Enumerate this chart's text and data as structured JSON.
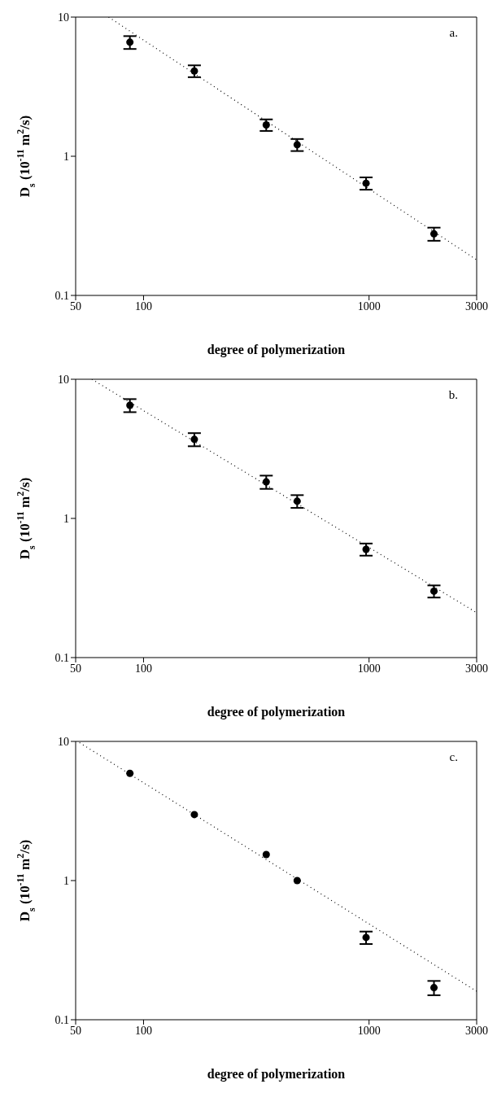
{
  "chart_data": [
    {
      "type": "scatter",
      "xlabel": "degree of polymerization",
      "ylabel": "D$_{s}$ (10$^{-11}$ m$^{2}$/s)",
      "annotations": [
        "a."
      ],
      "xlim": [
        50,
        3000
      ],
      "xticks": [
        50,
        100,
        1000,
        3000
      ],
      "ylim": [
        0.1,
        10
      ],
      "yticks": [
        0.1,
        1,
        10
      ],
      "log": "xy",
      "marker": "circle",
      "series": [
        {
          "color": "#000000",
          "x": [
            87,
            168,
            350,
            480,
            970,
            1940
          ],
          "values": [
            6.6,
            4.1,
            1.68,
            1.21,
            0.64,
            0.277
          ],
          "errors": [
            0.7,
            0.4,
            0.16,
            0.12,
            0.065,
            0.03
          ]
        },
        {
          "type": "line",
          "color": "#000000",
          "line_style": "dotted",
          "marker": "none",
          "x": [
            70,
            3000
          ],
          "values": [
            10,
            0.18
          ]
        }
      ]
    },
    {
      "type": "scatter",
      "xlabel": "degree of polymerization",
      "ylabel": "D$_{s}$ (10$^{-11}$ m$^{2}$/s)",
      "annotations": [
        "b."
      ],
      "xlim": [
        50,
        3000
      ],
      "xticks": [
        50,
        100,
        1000,
        3000
      ],
      "ylim": [
        0.1,
        10
      ],
      "yticks": [
        0.1,
        1,
        10
      ],
      "log": "xy",
      "marker": "circle",
      "series": [
        {
          "color": "#000000",
          "x": [
            87,
            168,
            350,
            480,
            970,
            1940
          ],
          "values": [
            6.5,
            3.7,
            1.83,
            1.33,
            0.6,
            0.3
          ],
          "errors": [
            0.7,
            0.4,
            0.2,
            0.14,
            0.06,
            0.03
          ]
        },
        {
          "type": "line",
          "color": "#000000",
          "line_style": "dotted",
          "marker": "none",
          "x": [
            59,
            3000
          ],
          "values": [
            10,
            0.21
          ]
        }
      ]
    },
    {
      "type": "scatter",
      "xlabel": "degree of polymerization",
      "ylabel": "D$_{s}$ (10$^{-11}$ m$^{2}$/s)",
      "annotations": [
        "c."
      ],
      "xlim": [
        50,
        3000
      ],
      "xticks": [
        50,
        100,
        1000,
        3000
      ],
      "ylim": [
        0.1,
        10
      ],
      "yticks": [
        0.1,
        1,
        10
      ],
      "log": "xy",
      "marker": "circle",
      "series": [
        {
          "color": "#000000",
          "x": [
            87,
            168,
            350,
            480,
            970,
            1940
          ],
          "values": [
            5.9,
            2.98,
            1.54,
            1.0,
            0.39,
            0.17
          ],
          "errors": [
            null,
            null,
            null,
            null,
            0.04,
            0.02
          ]
        },
        {
          "type": "line",
          "color": "#000000",
          "line_style": "dotted",
          "marker": "none",
          "x": [
            52,
            3000
          ],
          "values": [
            9.8,
            0.16
          ]
        }
      ]
    }
  ]
}
